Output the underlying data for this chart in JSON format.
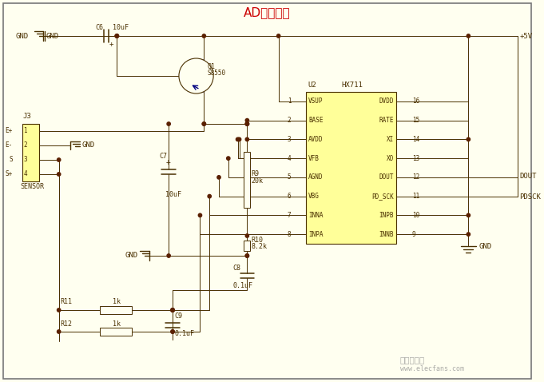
{
  "title": "AD采样电路",
  "title_color": "#CC0000",
  "bg_color": "#FFFFF0",
  "line_color": "#4A3000",
  "dot_color": "#5A2000",
  "component_fill": "#FFFF99",
  "border_color": "#888888",
  "watermark": "www.elecfans.com",
  "left_pins": [
    "VSUP",
    "BASE",
    "AVDD",
    "VFB",
    "AGND",
    "VBG",
    "INNA",
    "INPA"
  ],
  "left_pin_nums": [
    "1",
    "2",
    "3",
    "4",
    "5",
    "6",
    "7",
    "8"
  ],
  "right_pins": [
    "DVDD",
    "RATE",
    "XI",
    "XO",
    "DOUT",
    "PD_SCK",
    "INPB",
    "INNB"
  ],
  "right_pin_nums": [
    "16",
    "15",
    "14",
    "13",
    "12",
    "11",
    "10",
    "9"
  ]
}
